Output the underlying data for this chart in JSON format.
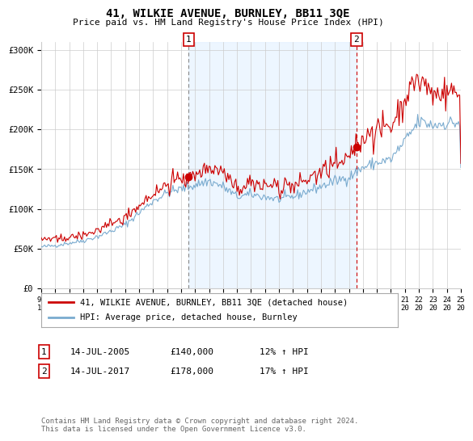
{
  "title": "41, WILKIE AVENUE, BURNLEY, BB11 3QE",
  "subtitle": "Price paid vs. HM Land Registry's House Price Index (HPI)",
  "x_start_year": 1995,
  "x_end_year": 2025,
  "ylim": [
    0,
    310000
  ],
  "yticks": [
    0,
    50000,
    100000,
    150000,
    200000,
    250000,
    300000
  ],
  "ytick_labels": [
    "£0",
    "£50K",
    "£100K",
    "£150K",
    "£200K",
    "£250K",
    "£300K"
  ],
  "red_color": "#cc0000",
  "blue_color": "#7aabcf",
  "vline1_color": "#888888",
  "vline2_color": "#cc0000",
  "vline1_style": "--",
  "vline2_style": "--",
  "shade_color": "#ddeeff",
  "shade_alpha": 0.5,
  "grid_color": "#cccccc",
  "bg_color": "#ffffff",
  "marker1_year": 2005.54,
  "marker2_year": 2017.54,
  "dot1_price": 140000,
  "dot2_price": 178000,
  "marker1_label": "1",
  "marker2_label": "2",
  "legend_line1": "41, WILKIE AVENUE, BURNLEY, BB11 3QE (detached house)",
  "legend_line2": "HPI: Average price, detached house, Burnley",
  "annotation1": [
    "1",
    "14-JUL-2005",
    "£140,000",
    "12% ↑ HPI"
  ],
  "annotation2": [
    "2",
    "14-JUL-2017",
    "£178,000",
    "17% ↑ HPI"
  ],
  "footer": "Contains HM Land Registry data © Crown copyright and database right 2024.\nThis data is licensed under the Open Government Licence v3.0."
}
